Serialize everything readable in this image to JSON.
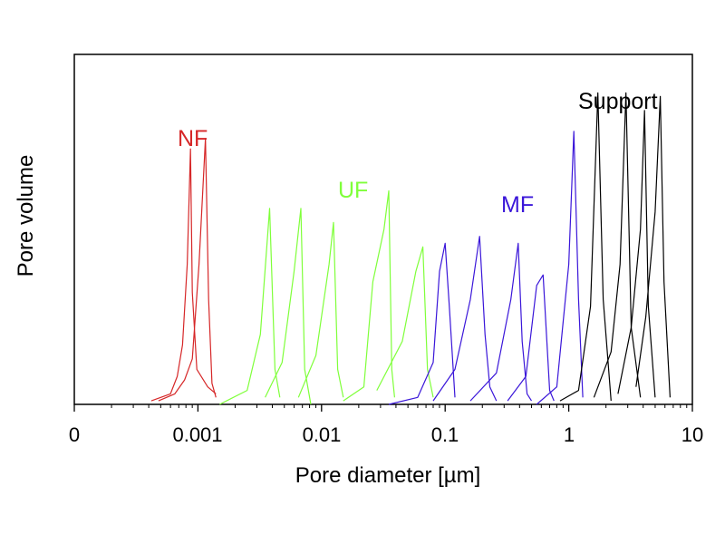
{
  "chart_data": {
    "type": "line",
    "title": "",
    "xlabel": "Pore diameter  [µm]",
    "ylabel": "Pore volume",
    "x_scale": "log",
    "xlim": [
      0.0001,
      10
    ],
    "ylim": [
      0,
      1
    ],
    "x_tick_labels": [
      "0",
      "0.001",
      "0.01",
      "0.1",
      "1",
      "10"
    ],
    "grid": false,
    "legend": "none",
    "annotations": [
      {
        "text": "NF",
        "color": "#d62728"
      },
      {
        "text": "UF",
        "color": "#7fff3a"
      },
      {
        "text": "MF",
        "color": "#3a16d9"
      },
      {
        "text": "Support",
        "color": "#000000"
      }
    ],
    "series": [
      {
        "group": "NF",
        "color": "#d62728",
        "points": [
          [
            0.00042,
            0.01
          ],
          [
            0.0006,
            0.03
          ],
          [
            0.00068,
            0.08
          ],
          [
            0.00075,
            0.17
          ],
          [
            0.00082,
            0.4
          ],
          [
            0.00087,
            0.73
          ],
          [
            0.0009,
            0.32
          ],
          [
            0.00098,
            0.1
          ],
          [
            0.0012,
            0.05
          ],
          [
            0.0014,
            0.03
          ]
        ]
      },
      {
        "group": "NF",
        "color": "#d62728",
        "points": [
          [
            0.00048,
            0.01
          ],
          [
            0.00065,
            0.03
          ],
          [
            0.00078,
            0.07
          ],
          [
            0.0009,
            0.13
          ],
          [
            0.00102,
            0.4
          ],
          [
            0.00115,
            0.76
          ],
          [
            0.00122,
            0.3
          ],
          [
            0.0013,
            0.06
          ],
          [
            0.0014,
            0.02
          ]
        ]
      },
      {
        "group": "UF",
        "color": "#7fff3a",
        "points": [
          [
            0.0015,
            0.0
          ],
          [
            0.0025,
            0.04
          ],
          [
            0.0032,
            0.2
          ],
          [
            0.0038,
            0.56
          ],
          [
            0.0042,
            0.1
          ],
          [
            0.0046,
            0.02
          ]
        ]
      },
      {
        "group": "UF",
        "color": "#7fff3a",
        "points": [
          [
            0.0035,
            0.02
          ],
          [
            0.0048,
            0.12
          ],
          [
            0.006,
            0.38
          ],
          [
            0.0068,
            0.56
          ],
          [
            0.0073,
            0.1
          ],
          [
            0.0082,
            0.0
          ]
        ]
      },
      {
        "group": "UF",
        "color": "#7fff3a",
        "points": [
          [
            0.0065,
            0.02
          ],
          [
            0.009,
            0.14
          ],
          [
            0.0115,
            0.4
          ],
          [
            0.0125,
            0.52
          ],
          [
            0.0135,
            0.1
          ],
          [
            0.015,
            0.02
          ]
        ]
      },
      {
        "group": "UF",
        "color": "#7fff3a",
        "points": [
          [
            0.015,
            0.01
          ],
          [
            0.022,
            0.05
          ],
          [
            0.026,
            0.35
          ],
          [
            0.032,
            0.5
          ],
          [
            0.035,
            0.61
          ],
          [
            0.037,
            0.1
          ],
          [
            0.039,
            0.02
          ]
        ]
      },
      {
        "group": "UF",
        "color": "#7fff3a",
        "points": [
          [
            0.028,
            0.04
          ],
          [
            0.045,
            0.18
          ],
          [
            0.058,
            0.38
          ],
          [
            0.066,
            0.45
          ],
          [
            0.072,
            0.1
          ],
          [
            0.08,
            0.02
          ]
        ]
      },
      {
        "group": "MF",
        "color": "#3a16d9",
        "points": [
          [
            0.035,
            0.0
          ],
          [
            0.06,
            0.02
          ],
          [
            0.08,
            0.12
          ],
          [
            0.09,
            0.38
          ],
          [
            0.1,
            0.46
          ],
          [
            0.108,
            0.28
          ],
          [
            0.12,
            0.02
          ]
        ]
      },
      {
        "group": "MF",
        "color": "#3a16d9",
        "points": [
          [
            0.08,
            0.01
          ],
          [
            0.12,
            0.1
          ],
          [
            0.16,
            0.3
          ],
          [
            0.19,
            0.48
          ],
          [
            0.21,
            0.2
          ],
          [
            0.23,
            0.05
          ],
          [
            0.26,
            0.01
          ]
        ]
      },
      {
        "group": "MF",
        "color": "#3a16d9",
        "points": [
          [
            0.16,
            0.01
          ],
          [
            0.26,
            0.09
          ],
          [
            0.34,
            0.3
          ],
          [
            0.39,
            0.46
          ],
          [
            0.42,
            0.18
          ],
          [
            0.46,
            0.03
          ],
          [
            0.5,
            0.01
          ]
        ]
      },
      {
        "group": "MF",
        "color": "#3a16d9",
        "points": [
          [
            0.32,
            0.01
          ],
          [
            0.45,
            0.08
          ],
          [
            0.55,
            0.34
          ],
          [
            0.62,
            0.37
          ],
          [
            0.66,
            0.2
          ],
          [
            0.7,
            0.04
          ],
          [
            0.76,
            0.01
          ]
        ]
      },
      {
        "group": "MF",
        "color": "#3a16d9",
        "points": [
          [
            0.55,
            0.0
          ],
          [
            0.8,
            0.05
          ],
          [
            1.0,
            0.4
          ],
          [
            1.1,
            0.78
          ],
          [
            1.2,
            0.3
          ],
          [
            1.3,
            0.02
          ]
        ]
      },
      {
        "group": "Support",
        "color": "#000000",
        "points": [
          [
            0.85,
            0.01
          ],
          [
            1.2,
            0.04
          ],
          [
            1.5,
            0.28
          ],
          [
            1.72,
            0.89
          ],
          [
            1.9,
            0.3
          ],
          [
            2.2,
            0.01
          ]
        ]
      },
      {
        "group": "Support",
        "color": "#000000",
        "points": [
          [
            1.6,
            0.02
          ],
          [
            2.2,
            0.15
          ],
          [
            2.6,
            0.4
          ],
          [
            2.9,
            0.89
          ],
          [
            3.2,
            0.22
          ],
          [
            3.8,
            0.02
          ]
        ]
      },
      {
        "group": "Support",
        "color": "#000000",
        "points": [
          [
            2.5,
            0.03
          ],
          [
            3.2,
            0.22
          ],
          [
            3.8,
            0.5
          ],
          [
            4.1,
            0.84
          ],
          [
            4.4,
            0.28
          ],
          [
            5.0,
            0.02
          ]
        ]
      },
      {
        "group": "Support",
        "color": "#000000",
        "points": [
          [
            3.5,
            0.05
          ],
          [
            4.2,
            0.25
          ],
          [
            5.0,
            0.55
          ],
          [
            5.5,
            0.88
          ],
          [
            5.9,
            0.35
          ],
          [
            6.6,
            0.02
          ]
        ]
      }
    ]
  }
}
